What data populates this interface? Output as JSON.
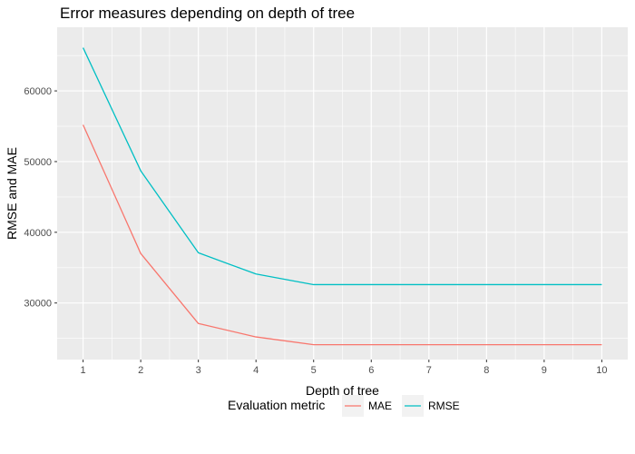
{
  "chart_data": {
    "type": "line",
    "title": "Error measures depending on depth of tree",
    "xlabel": "Depth of tree",
    "ylabel": "RMSE and MAE",
    "x": [
      1,
      2,
      3,
      4,
      5,
      6,
      7,
      8,
      9,
      10
    ],
    "x_ticks": [
      "1",
      "2",
      "3",
      "4",
      "5",
      "6",
      "7",
      "8",
      "9",
      "10"
    ],
    "y_ticks": [
      30000,
      40000,
      50000,
      60000
    ],
    "xlim": [
      0.55,
      10.45
    ],
    "ylim": [
      22000,
      69000
    ],
    "grid": true,
    "legend": {
      "title": "Evaluation metric",
      "position": "bottom"
    },
    "series": [
      {
        "name": "MAE",
        "color": "#F8766D",
        "values": [
          55200,
          37000,
          27100,
          25200,
          24100,
          24100,
          24100,
          24100,
          24100,
          24100
        ]
      },
      {
        "name": "RMSE",
        "color": "#00BFC4",
        "values": [
          66100,
          48700,
          37100,
          34100,
          32600,
          32600,
          32600,
          32600,
          32600,
          32600
        ]
      }
    ]
  }
}
